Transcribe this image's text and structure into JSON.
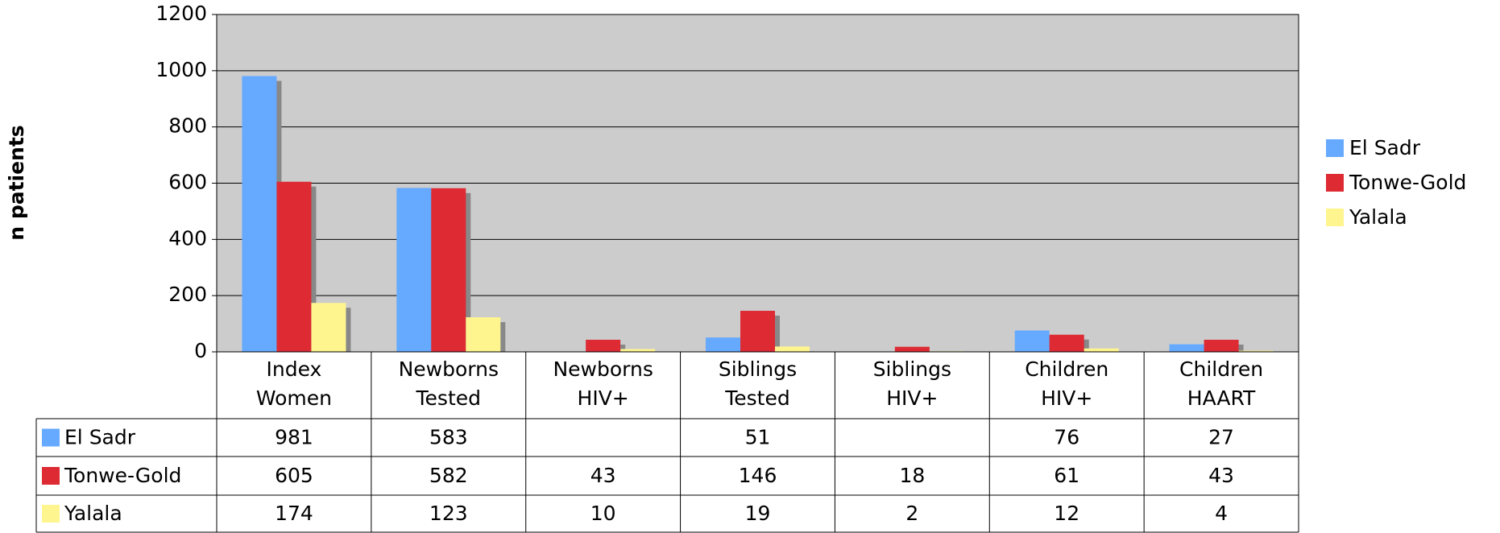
{
  "chart_data": {
    "type": "bar",
    "y_label": "n patients",
    "categories": [
      "Index Women",
      "Newborns Tested",
      "Newborns HIV+",
      "Siblings Tested",
      "Siblings HIV+",
      "Children HIV+",
      "Children HAART"
    ],
    "series": [
      {
        "name": "El Sadr",
        "color": "#66aaff",
        "values": [
          981,
          583,
          null,
          51,
          null,
          76,
          27
        ]
      },
      {
        "name": "Tonwe-Gold",
        "color": "#dd2a33",
        "values": [
          605,
          582,
          43,
          146,
          18,
          61,
          43
        ]
      },
      {
        "name": "Yalala",
        "color": "#fff58f",
        "values": [
          174,
          123,
          10,
          19,
          2,
          12,
          4
        ]
      }
    ],
    "ylim": [
      0,
      1200
    ],
    "yticks": [
      0,
      200,
      400,
      600,
      800,
      1000,
      1200
    ],
    "grid": true,
    "legend": "right",
    "data_table": true
  }
}
